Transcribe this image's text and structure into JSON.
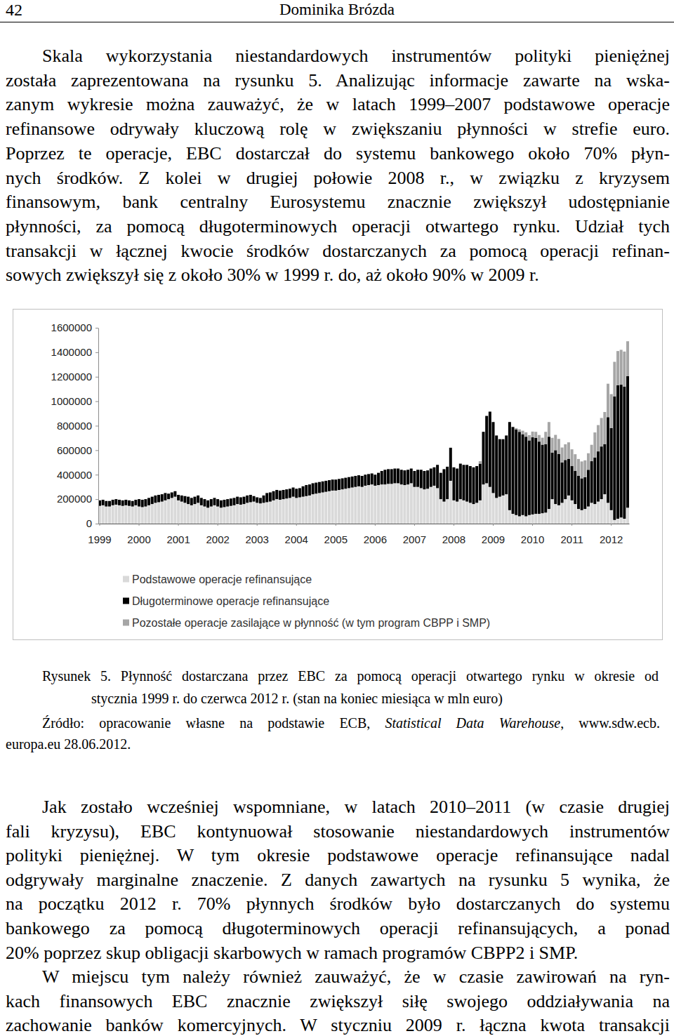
{
  "header": {
    "page": "42",
    "author": "Dominika Brózda"
  },
  "paragraphs_before": [
    {
      "lines": [
        "Skala wykorzystania niestandardowych instrumentów polityki pieniężnej",
        "została zaprezentowana na rysunku 5. Analizując informacje zawarte na wska-",
        "zanym wykresie można zauważyć, że w latach 1999–2007 podstawowe operacje",
        "refinansowe odrywały kluczową rolę w zwiększaniu płynności w strefie euro.",
        "Poprzez te operacje, EBC dostarczał do systemu bankowego około 70% płyn-",
        "nych środków. Z kolei w drugiej połowie 2008 r., w związku z kryzysem",
        "finansowym, bank centralny Eurosystemu znacznie zwiększył udostępnianie",
        "płynności, za pomocą długoterminowych operacji otwartego rynku. Udział tych",
        "transakcji w łącznej kwocie środków dostarczanych za pomocą operacji refinan-",
        "sowych zwiększył się z około 30% w 1999 r. do, aż około 90% w 2009 r."
      ]
    }
  ],
  "chart_data": {
    "type": "bar",
    "stacked": true,
    "legend": "bottom",
    "grid": false,
    "categories": [
      "1999",
      null,
      null,
      null,
      null,
      null,
      null,
      null,
      null,
      null,
      null,
      null,
      "2000",
      null,
      null,
      null,
      null,
      null,
      null,
      null,
      null,
      null,
      null,
      null,
      "2001",
      null,
      null,
      null,
      null,
      null,
      null,
      null,
      null,
      null,
      null,
      null,
      "2002",
      null,
      null,
      null,
      null,
      null,
      null,
      null,
      null,
      null,
      null,
      null,
      "2003",
      null,
      null,
      null,
      null,
      null,
      null,
      null,
      null,
      null,
      null,
      null,
      "2004",
      null,
      null,
      null,
      null,
      null,
      null,
      null,
      null,
      null,
      null,
      null,
      "2005",
      null,
      null,
      null,
      null,
      null,
      null,
      null,
      null,
      null,
      null,
      null,
      "2006",
      null,
      null,
      null,
      null,
      null,
      null,
      null,
      null,
      null,
      null,
      null,
      "2007",
      null,
      null,
      null,
      null,
      null,
      null,
      null,
      null,
      null,
      null,
      null,
      "2008",
      null,
      null,
      null,
      null,
      null,
      null,
      null,
      null,
      null,
      null,
      null,
      "2009",
      null,
      null,
      null,
      null,
      null,
      null,
      null,
      null,
      null,
      null,
      null,
      "2010",
      null,
      null,
      null,
      null,
      null,
      null,
      null,
      null,
      null,
      null,
      null,
      "2011",
      null,
      null,
      null,
      null,
      null,
      null,
      null,
      null,
      null,
      null,
      null,
      "2012",
      null,
      null,
      null,
      null,
      null
    ],
    "ylim": [
      0,
      1600000
    ],
    "yticks": [
      0,
      200000,
      400000,
      600000,
      800000,
      1000000,
      1200000,
      1400000,
      1600000
    ],
    "series": [
      {
        "name": "Podstawowe operacje refinansujące",
        "color": "#d9d9d9",
        "values": [
          145000,
          150000,
          140000,
          140000,
          150000,
          155000,
          150000,
          145000,
          150000,
          145000,
          140000,
          150000,
          140000,
          135000,
          140000,
          150000,
          160000,
          170000,
          175000,
          180000,
          190000,
          200000,
          210000,
          220000,
          190000,
          180000,
          170000,
          160000,
          150000,
          160000,
          170000,
          150000,
          140000,
          130000,
          140000,
          150000,
          140000,
          130000,
          135000,
          140000,
          145000,
          150000,
          160000,
          155000,
          160000,
          170000,
          175000,
          180000,
          170000,
          165000,
          170000,
          175000,
          180000,
          190000,
          200000,
          195000,
          200000,
          205000,
          210000,
          220000,
          210000,
          215000,
          220000,
          225000,
          230000,
          240000,
          245000,
          250000,
          255000,
          260000,
          265000,
          270000,
          270000,
          275000,
          280000,
          285000,
          290000,
          295000,
          300000,
          305000,
          300000,
          310000,
          315000,
          320000,
          310000,
          315000,
          320000,
          320000,
          325000,
          325000,
          330000,
          330000,
          320000,
          315000,
          320000,
          330000,
          300000,
          300000,
          290000,
          280000,
          285000,
          300000,
          310000,
          290000,
          200000,
          180000,
          200000,
          350000,
          190000,
          180000,
          200000,
          190000,
          180000,
          170000,
          160000,
          170000,
          190000,
          320000,
          330000,
          300000,
          250000,
          210000,
          220000,
          230000,
          240000,
          110000,
          80000,
          70000,
          60000,
          70000,
          60000,
          70000,
          75000,
          80000,
          80000,
          85000,
          90000,
          120000,
          200000,
          160000,
          150000,
          170000,
          200000,
          230000,
          190000,
          160000,
          120000,
          110000,
          120000,
          140000,
          170000,
          160000,
          180000,
          200000,
          240000,
          170000,
          110000,
          30000,
          40000,
          50000,
          40000,
          130000
        ]
      },
      {
        "name": "Długoterminowe operacje refinansujące",
        "color": "#000000",
        "values": [
          45000,
          45000,
          45000,
          45000,
          45000,
          45000,
          45000,
          45000,
          45000,
          45000,
          45000,
          45000,
          60000,
          60000,
          60000,
          60000,
          60000,
          60000,
          60000,
          60000,
          60000,
          45000,
          45000,
          45000,
          45000,
          50000,
          55000,
          60000,
          60000,
          60000,
          60000,
          60000,
          60000,
          60000,
          60000,
          60000,
          60000,
          60000,
          60000,
          60000,
          60000,
          60000,
          60000,
          60000,
          60000,
          60000,
          60000,
          45000,
          45000,
          45000,
          60000,
          75000,
          75000,
          75000,
          75000,
          75000,
          75000,
          75000,
          75000,
          75000,
          75000,
          75000,
          85000,
          90000,
          90000,
          90000,
          90000,
          90000,
          90000,
          90000,
          90000,
          90000,
          90000,
          90000,
          90000,
          90000,
          90000,
          90000,
          90000,
          90000,
          90000,
          90000,
          90000,
          90000,
          90000,
          100000,
          110000,
          120000,
          120000,
          120000,
          120000,
          120000,
          120000,
          120000,
          120000,
          120000,
          130000,
          140000,
          150000,
          150000,
          150000,
          150000,
          150000,
          190000,
          215000,
          265000,
          265000,
          270000,
          270000,
          270000,
          290000,
          290000,
          300000,
          300000,
          300000,
          300000,
          300000,
          430000,
          550000,
          615000,
          580000,
          510000,
          470000,
          460000,
          480000,
          720000,
          710000,
          700000,
          690000,
          660000,
          650000,
          610000,
          630000,
          620000,
          590000,
          560000,
          560000,
          590000,
          380000,
          440000,
          420000,
          330000,
          320000,
          300000,
          280000,
          270000,
          270000,
          260000,
          260000,
          300000,
          340000,
          380000,
          410000,
          430000,
          410000,
          700000,
          670000,
          1010000,
          1090000,
          1085000,
          1080000,
          1075000
        ]
      },
      {
        "name": "Pozostałe operacje zasilające w płynność (w tym program CBPP i SMP)",
        "color": "#a6a6a6",
        "values": [
          0,
          0,
          0,
          0,
          0,
          0,
          0,
          0,
          0,
          0,
          0,
          0,
          0,
          0,
          0,
          0,
          0,
          0,
          0,
          0,
          0,
          0,
          0,
          0,
          0,
          0,
          0,
          0,
          0,
          0,
          0,
          0,
          0,
          0,
          0,
          0,
          0,
          0,
          0,
          0,
          0,
          0,
          0,
          0,
          0,
          0,
          0,
          0,
          0,
          0,
          0,
          0,
          0,
          0,
          0,
          0,
          0,
          0,
          0,
          0,
          0,
          0,
          0,
          0,
          0,
          0,
          0,
          0,
          0,
          0,
          0,
          0,
          0,
          0,
          0,
          0,
          0,
          0,
          0,
          0,
          0,
          0,
          0,
          0,
          0,
          0,
          0,
          0,
          0,
          0,
          0,
          0,
          0,
          0,
          0,
          0,
          0,
          0,
          0,
          0,
          0,
          0,
          0,
          0,
          0,
          0,
          0,
          0,
          0,
          0,
          0,
          0,
          0,
          0,
          0,
          0,
          20000,
          0,
          0,
          0,
          0,
          0,
          0,
          0,
          0,
          0,
          2000,
          10000,
          20000,
          29000,
          36000,
          43000,
          47000,
          50000,
          54000,
          57000,
          100000,
          120000,
          121000,
          125000,
          122000,
          122000,
          128000,
          134000,
          137000,
          137000,
          138000,
          138000,
          137000,
          135000,
          134000,
          205000,
          215000,
          233000,
          262000,
          273000,
          278000,
          282000,
          280000,
          285000,
          286000,
          285000
        ]
      }
    ]
  },
  "caption": {
    "lines": [
      "Rysunek 5. Płynność dostarczana przez EBC za pomocą operacji otwartego rynku w okresie od",
      "stycznia 1999 r. do czerwca 2012 r. (stan na koniec miesiąca w mln euro)"
    ]
  },
  "source": {
    "lines": [
      [
        {
          "text": "Źródło: opracowanie własne na podstawie ECB, "
        },
        {
          "text": "Statistical Data Warehouse",
          "italic": true
        },
        {
          "text": ", www.sdw.ecb."
        }
      ],
      [
        {
          "text": "europa.eu 28.06.2012."
        }
      ]
    ]
  },
  "paragraphs_after": [
    {
      "lines": [
        "Jak zostało wcześniej wspomniane, w latach 2010–2011 (w czasie drugiej",
        "fali kryzysu), EBC kontynuował stosowanie niestandardowych instrumentów",
        "polityki pieniężnej. W tym okresie podstawowe operacje refinansujące nadal",
        "odgrywały marginalne znaczenie. Z danych zawartych na rysunku 5 wynika, że",
        "na początku 2012 r. 70% płynnych środków było dostarczanych do systemu",
        "bankowego za pomocą długoterminowych operacji refinansujących, a ponad",
        "20% poprzez skup obligacji skarbowych w ramach programów CBPP2 i SMP."
      ]
    },
    {
      "lines": [
        "W miejscu tym należy również zauważyć, że w czasie zawirowań na ryn-",
        "kach finansowych EBC znacznie zwiększył siłę swojego oddziaływania na",
        "zachowanie banków komercyjnych. W styczniu 2009 r. łączna kwota transakcji"
      ]
    }
  ]
}
